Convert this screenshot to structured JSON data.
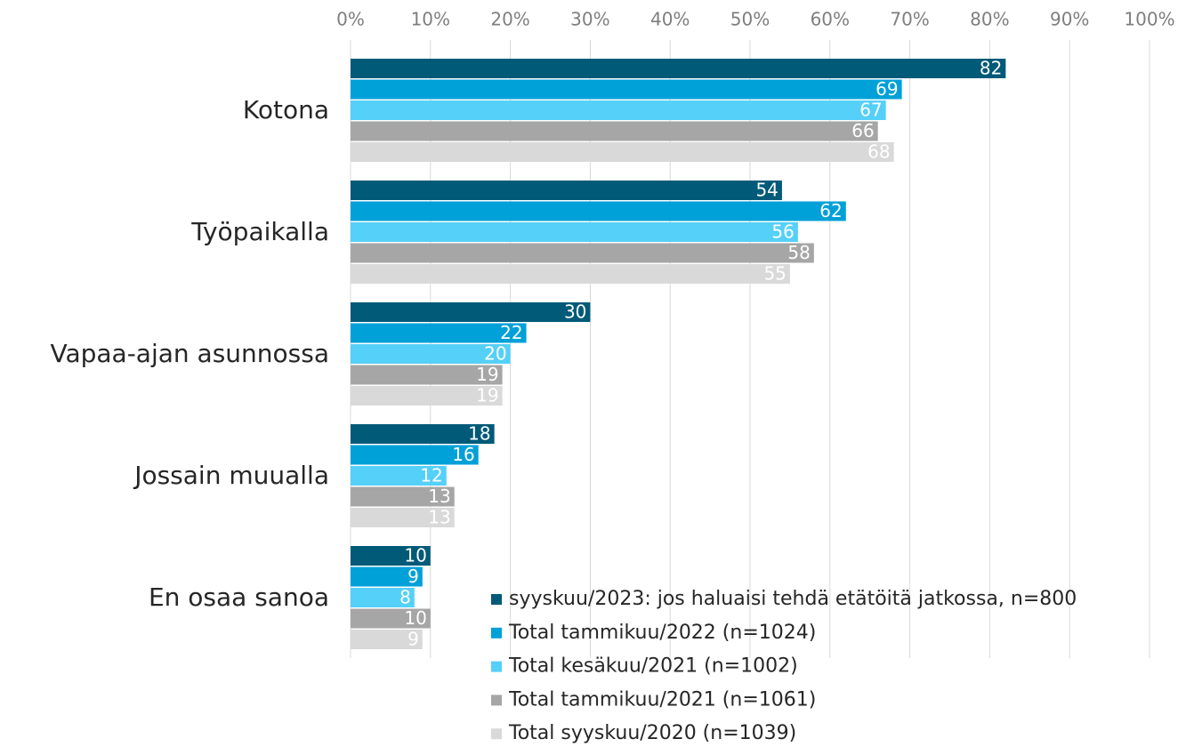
{
  "chart_data": {
    "type": "barh",
    "categories": [
      "Kotona",
      "Työpaikalla",
      "Vapaa-ajan asunnossa",
      "Jossain muualla",
      "En osaa sanoa"
    ],
    "series": [
      {
        "name": "syyskuu/2023: jos haluaisi tehdä etätöitä jatkossa, n=800",
        "color": "#005a78",
        "values": [
          82,
          54,
          30,
          18,
          10
        ]
      },
      {
        "name": "Total tammikuu/2022 (n=1024)",
        "color": "#00a0d8",
        "values": [
          69,
          62,
          22,
          16,
          9
        ]
      },
      {
        "name": "Total kesäkuu/2021 (n=1002)",
        "color": "#55d0f8",
        "values": [
          67,
          56,
          20,
          12,
          8
        ]
      },
      {
        "name": "Total tammikuu/2021 (n=1061)",
        "color": "#a6a6a6",
        "values": [
          66,
          58,
          19,
          13,
          10
        ]
      },
      {
        "name": "Total syyskuu/2020 (n=1039)",
        "color": "#d9d9d9",
        "values": [
          68,
          55,
          19,
          13,
          9
        ]
      }
    ],
    "xlim": [
      0,
      100
    ],
    "xticks": [
      {
        "value": 0,
        "label": "0%"
      },
      {
        "value": 10,
        "label": "10%"
      },
      {
        "value": 20,
        "label": "20%"
      },
      {
        "value": 30,
        "label": "30%"
      },
      {
        "value": 40,
        "label": "40%"
      },
      {
        "value": 50,
        "label": "50%"
      },
      {
        "value": 60,
        "label": "60%"
      },
      {
        "value": 70,
        "label": "70%"
      },
      {
        "value": 80,
        "label": "80%"
      },
      {
        "value": 90,
        "label": "90%"
      },
      {
        "value": 100,
        "label": "100%"
      }
    ],
    "grid": true
  }
}
